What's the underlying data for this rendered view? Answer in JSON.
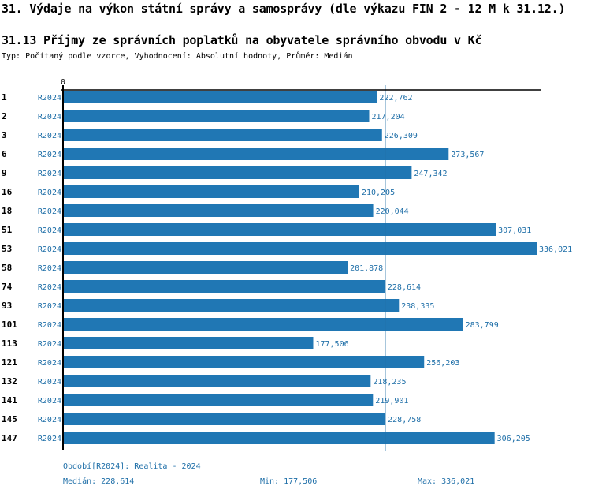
{
  "header": {
    "title": "31. Výdaje na výkon státní správy a samosprávy (dle výkazu FIN 2 - 12 M k 31.12.)",
    "subtitle": "31.13 Příjmy ze správních poplatků na obyvatele správního obvodu v Kč",
    "meta": "Typ: Počítaný podle vzorce, Vyhodnocení: Absolutní hodnoty, Průměr: Medián"
  },
  "colors": {
    "bar": "#2077b4",
    "label": "#1f6fa8",
    "axis": "#000000"
  },
  "chart_data": {
    "type": "bar",
    "orientation": "horizontal",
    "title": "31.13 Příjmy ze správních poplatků na obyvatele správního obvodu v Kč",
    "xlabel": "",
    "ylabel": "",
    "axis_origin_label": "0",
    "xlim": [
      0,
      336021
    ],
    "period_label": "R2024",
    "categories": [
      "1",
      "2",
      "3",
      "6",
      "9",
      "16",
      "18",
      "51",
      "53",
      "58",
      "74",
      "93",
      "101",
      "113",
      "121",
      "132",
      "141",
      "145",
      "147"
    ],
    "values": [
      222762,
      217204,
      226309,
      273567,
      247342,
      210205,
      220044,
      307031,
      336021,
      201878,
      228614,
      238335,
      283799,
      177506,
      256203,
      218235,
      219901,
      228758,
      306205
    ],
    "value_labels": [
      "222,762",
      "217,204",
      "226,309",
      "273,567",
      "247,342",
      "210,205",
      "220,044",
      "307,031",
      "336,021",
      "201,878",
      "228,614",
      "238,335",
      "283,799",
      "177,506",
      "256,203",
      "218,235",
      "219,901",
      "228,758",
      "306,205"
    ],
    "reference_line": {
      "name": "Medián",
      "value": 228614
    }
  },
  "footer": {
    "period": "Období[R2024]: Realita - 2024",
    "median": "Medián: 228,614",
    "min": "Min: 177,506",
    "max": "Max: 336,021"
  }
}
